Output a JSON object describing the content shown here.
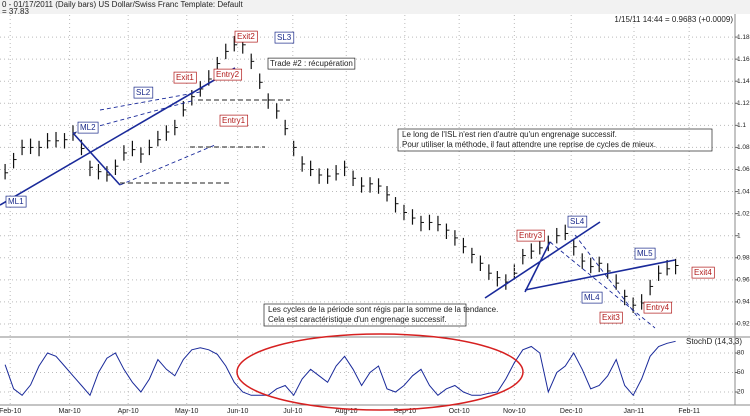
{
  "header": {
    "title": "0 - 01/17/2011 (Daily bars)  US Dollar/Swiss Franc     Template: Default",
    "subtitle": "= 37.83",
    "quote": "1/15/11 14:44 = 0.9683 (+0.0009)"
  },
  "chart_data": [
    {
      "type": "ohlc",
      "color": "#111111",
      "grid": true,
      "xlim": [
        -0.6,
        86
      ],
      "ylim": [
        0.91,
        1.2
      ],
      "yticks": [
        0.92,
        0.94,
        0.96,
        0.98,
        1.0,
        1.02,
        1.04,
        1.06,
        1.08,
        1.1,
        1.12,
        1.14,
        1.16,
        1.18
      ],
      "high": [
        1.065,
        1.075,
        1.087,
        1.088,
        1.086,
        1.093,
        1.094,
        1.093,
        1.1,
        1.087,
        1.068,
        1.065,
        1.063,
        1.069,
        1.082,
        1.086,
        1.08,
        1.087,
        1.095,
        1.1,
        1.105,
        1.122,
        1.132,
        1.14,
        1.15,
        1.162,
        1.174,
        1.181,
        1.179,
        1.165,
        1.147,
        1.129,
        1.12,
        1.105,
        1.086,
        1.072,
        1.068,
        1.061,
        1.061,
        1.064,
        1.068,
        1.059,
        1.053,
        1.053,
        1.052,
        1.045,
        1.035,
        1.028,
        1.024,
        1.018,
        1.019,
        1.018,
        1.011,
        1.005,
        0.998,
        0.989,
        0.982,
        0.974,
        0.968,
        0.965,
        0.974,
        0.988,
        0.993,
        0.997,
        1.0,
        1.007,
        1.01,
        0.996,
        0.984,
        0.98,
        0.981,
        0.975,
        0.965,
        0.951,
        0.944,
        0.947,
        0.96,
        0.973,
        0.978,
        0.979
      ],
      "low": [
        1.051,
        1.061,
        1.073,
        1.074,
        1.072,
        1.079,
        1.08,
        1.079,
        1.086,
        1.073,
        1.054,
        1.051,
        1.049,
        1.055,
        1.068,
        1.072,
        1.066,
        1.073,
        1.081,
        1.086,
        1.091,
        1.108,
        1.118,
        1.126,
        1.136,
        1.148,
        1.16,
        1.167,
        1.165,
        1.151,
        1.133,
        1.115,
        1.106,
        1.091,
        1.072,
        1.058,
        1.054,
        1.047,
        1.047,
        1.05,
        1.054,
        1.045,
        1.039,
        1.039,
        1.038,
        1.031,
        1.021,
        1.014,
        1.01,
        1.004,
        1.005,
        1.004,
        0.997,
        0.991,
        0.984,
        0.975,
        0.968,
        0.96,
        0.954,
        0.951,
        0.96,
        0.974,
        0.979,
        0.983,
        0.986,
        0.993,
        0.996,
        0.982,
        0.97,
        0.966,
        0.967,
        0.961,
        0.951,
        0.937,
        0.93,
        0.933,
        0.946,
        0.959,
        0.964,
        0.965
      ],
      "close": [
        1.057,
        1.069,
        1.08,
        1.08,
        1.08,
        1.086,
        1.086,
        1.087,
        1.093,
        1.079,
        1.062,
        1.058,
        1.055,
        1.063,
        1.075,
        1.078,
        1.074,
        1.08,
        1.087,
        1.094,
        1.098,
        1.114,
        1.126,
        1.133,
        1.142,
        1.156,
        1.167,
        1.173,
        1.173,
        1.158,
        1.139,
        1.123,
        1.113,
        1.097,
        1.08,
        1.065,
        1.06,
        1.055,
        1.054,
        1.056,
        1.062,
        1.052,
        1.045,
        1.047,
        1.045,
        1.037,
        1.029,
        1.021,
        1.016,
        1.012,
        1.012,
        1.01,
        1.005,
        0.998,
        0.99,
        0.983,
        0.975,
        0.966,
        0.962,
        0.958,
        0.966,
        0.982,
        0.986,
        0.989,
        0.994,
        1.0,
        1.002,
        0.99,
        0.977,
        0.972,
        0.975,
        0.968,
        0.957,
        0.945,
        0.937,
        0.939,
        0.954,
        0.966,
        0.97,
        0.973
      ],
      "annotations": [
        "Exit2",
        "Exit1",
        "Entry2",
        "Entry1",
        "Entry3",
        "Exit3",
        "Entry4",
        "Exit4",
        "ML1",
        "ML2",
        "SL2",
        "SL3",
        "SL4",
        "ML4",
        "ML5",
        "Trade #2 : récupération",
        "Le long de l'ISL n'est rien d'autre qu'un engrenage successif.",
        "Pour utiliser la méthode, il faut attendre une reprise de cycles de mieux.",
        "Les cycles de la période sont régis par la somme de la tendance.",
        "Cela est caractéristique d'un engrenage successif."
      ]
    },
    {
      "type": "line",
      "title": "StochD (14,3,3)",
      "color": "#1a2a9a",
      "grid": true,
      "xlim": [
        -0.6,
        86
      ],
      "ylim": [
        0,
        100
      ],
      "yticks": [
        20,
        50,
        80
      ],
      "xticks": [
        {
          "value": 0.6,
          "label": "Feb-10"
        },
        {
          "value": 7.6,
          "label": "Mar-10"
        },
        {
          "value": 14.5,
          "label": "Apr-10"
        },
        {
          "value": 21.4,
          "label": "May-10"
        },
        {
          "value": 27.4,
          "label": "Jun-10"
        },
        {
          "value": 33.9,
          "label": "Jul-10"
        },
        {
          "value": 40.2,
          "label": "Aug-10"
        },
        {
          "value": 47.1,
          "label": "Sep-10"
        },
        {
          "value": 53.5,
          "label": "Oct-10"
        },
        {
          "value": 60,
          "label": "Nov-10"
        },
        {
          "value": 66.7,
          "label": "Dec-10"
        },
        {
          "value": 74.1,
          "label": "Jan-11"
        },
        {
          "value": 80.6,
          "label": "Feb-11"
        }
      ],
      "values": [
        62,
        25,
        15,
        31,
        60,
        80,
        75,
        60,
        45,
        30,
        15,
        50,
        72,
        80,
        55,
        35,
        20,
        40,
        70,
        55,
        45,
        70,
        85,
        88,
        85,
        78,
        60,
        35,
        20,
        15,
        15,
        15,
        25,
        30,
        15,
        40,
        55,
        45,
        35,
        60,
        75,
        55,
        30,
        50,
        60,
        25,
        20,
        30,
        45,
        55,
        30,
        15,
        25,
        30,
        20,
        15,
        15,
        18,
        20,
        40,
        65,
        85,
        90,
        80,
        20,
        50,
        60,
        80,
        55,
        25,
        30,
        45,
        70,
        30,
        15,
        40,
        75,
        90,
        95,
        98
      ]
    }
  ]
}
